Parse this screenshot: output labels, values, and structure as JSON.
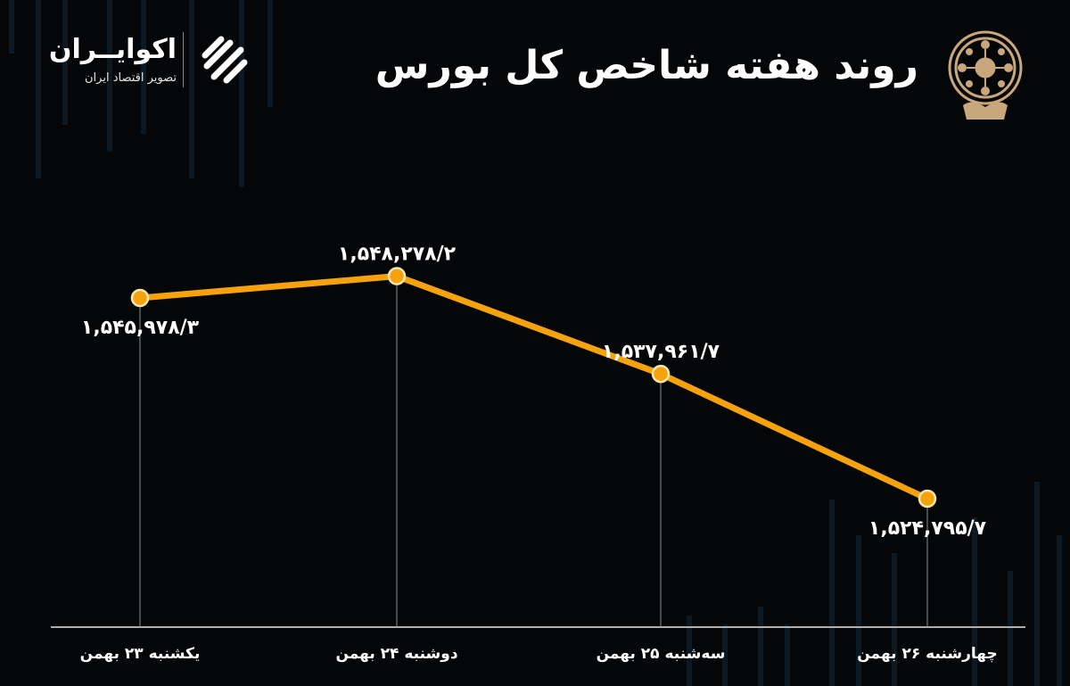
{
  "header": {
    "title": "روند هفته شاخص کل بورس"
  },
  "logo": {
    "name": "اکوایــران",
    "tagline": "تصویر اقتصاد ایران"
  },
  "colors": {
    "background": "#050608",
    "line": "#f5a20c",
    "marker_fill": "#f5a20c",
    "marker_stroke": "#ffe7b0",
    "text": "#ffffff",
    "guide": "#8c8c8c",
    "seal": "#c9a77c"
  },
  "chart_data": {
    "type": "line",
    "categories": [
      "یکشنبه ۲۳ بهمن",
      "دوشنبه ۲۴ بهمن",
      "سه‌شنبه ۲۵ بهمن",
      "چهارشنبه ۲۶ بهمن"
    ],
    "values": [
      1545978.3,
      1548278.2,
      1537961.7,
      1524795.7
    ],
    "data_labels": [
      "۱,۵۴۵,۹۷۸/۳",
      "۱,۵۴۸,۲۷۸/۲",
      "۱,۵۳۷,۹۶۱/۷",
      "۱,۵۲۴,۷۹۵/۷"
    ],
    "label_position": [
      "below",
      "above",
      "above",
      "below"
    ],
    "title": "روند هفته شاخص کل بورس",
    "xlabel": "",
    "ylabel": "",
    "grid": false,
    "legend": "none"
  }
}
